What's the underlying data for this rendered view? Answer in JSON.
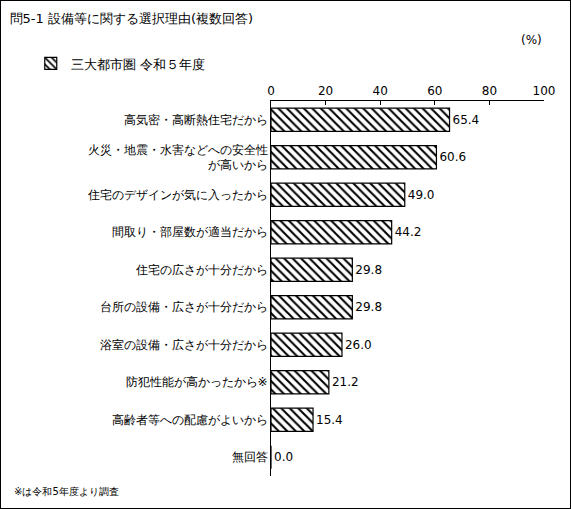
{
  "chart_data": {
    "type": "bar",
    "orientation": "horizontal",
    "title": "問5-1 設備等に関する選択理由(複数回答)",
    "x_label": "(%)",
    "note": "※は令和5年度より調査",
    "categories": [
      "高気密・高断熱住宅だから",
      "火災・地震・水害などへの安全性\nが高いから",
      "住宅のデザインが気に入ったから",
      "間取り・部屋数が適当だから",
      "住宅の広さが十分だから",
      "台所の設備・広さが十分だから",
      "浴室の設備・広さが十分だから",
      "防犯性能が高かったから※",
      "高齢者等への配慮がよいから",
      "無回答"
    ],
    "series": [
      {
        "name": "三大都市圏 令和５年度",
        "color": "#000000",
        "marker": "hatch",
        "values": [
          65.4,
          60.6,
          49.0,
          44.2,
          29.8,
          29.8,
          26.0,
          21.2,
          15.4,
          0.0
        ],
        "value_labels": [
          "65.4",
          "60.6",
          "49.0",
          "44.2",
          "29.8",
          "29.8",
          "26.0",
          "21.2",
          "15.4",
          "0.0"
        ]
      }
    ],
    "xlim": [
      0,
      100
    ],
    "xticks": [
      0,
      20,
      40,
      60,
      80,
      100
    ],
    "grid": false,
    "legend": "top-left",
    "data_labels": true
  }
}
